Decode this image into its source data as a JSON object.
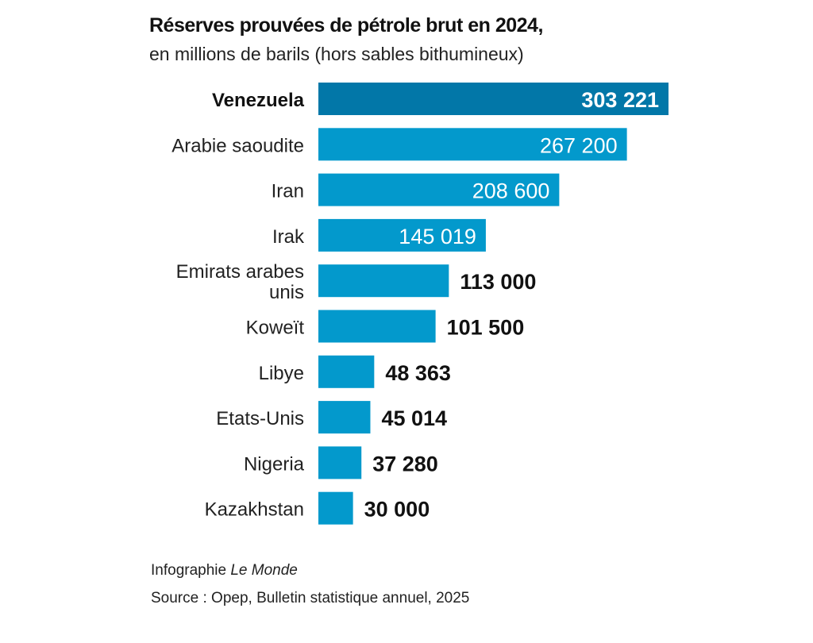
{
  "chart_data": {
    "type": "bar",
    "orientation": "horizontal",
    "title": "Réserves prouvées de pétrole brut en 2024,",
    "subtitle": "en millions de barils (hors sables bithumineux)",
    "categories": [
      "Venezuela",
      "Arabie saoudite",
      "Iran",
      "Irak",
      "Emirats arabes unis",
      "Koweït",
      "Libye",
      "Etats-Unis",
      "Nigeria",
      "Kazakhstan"
    ],
    "values": [
      303221,
      267200,
      208600,
      145019,
      113000,
      101500,
      48363,
      45014,
      37280,
      30000
    ],
    "value_labels": [
      "303 221",
      "267 200",
      "208 600",
      "145 019",
      "113 000",
      "101 500",
      "48 363",
      "45 014",
      "37 280",
      "30 000"
    ],
    "highlight": "Venezuela",
    "xlim": [
      0,
      303221
    ],
    "grid": false,
    "colors": {
      "highlight": "#0277a8",
      "bar": "#0399cc"
    }
  },
  "footer": {
    "credit_prefix": "Infographie ",
    "credit_name": "Le Monde",
    "source": "Source : Opep, Bulletin statistique annuel, 2025"
  }
}
